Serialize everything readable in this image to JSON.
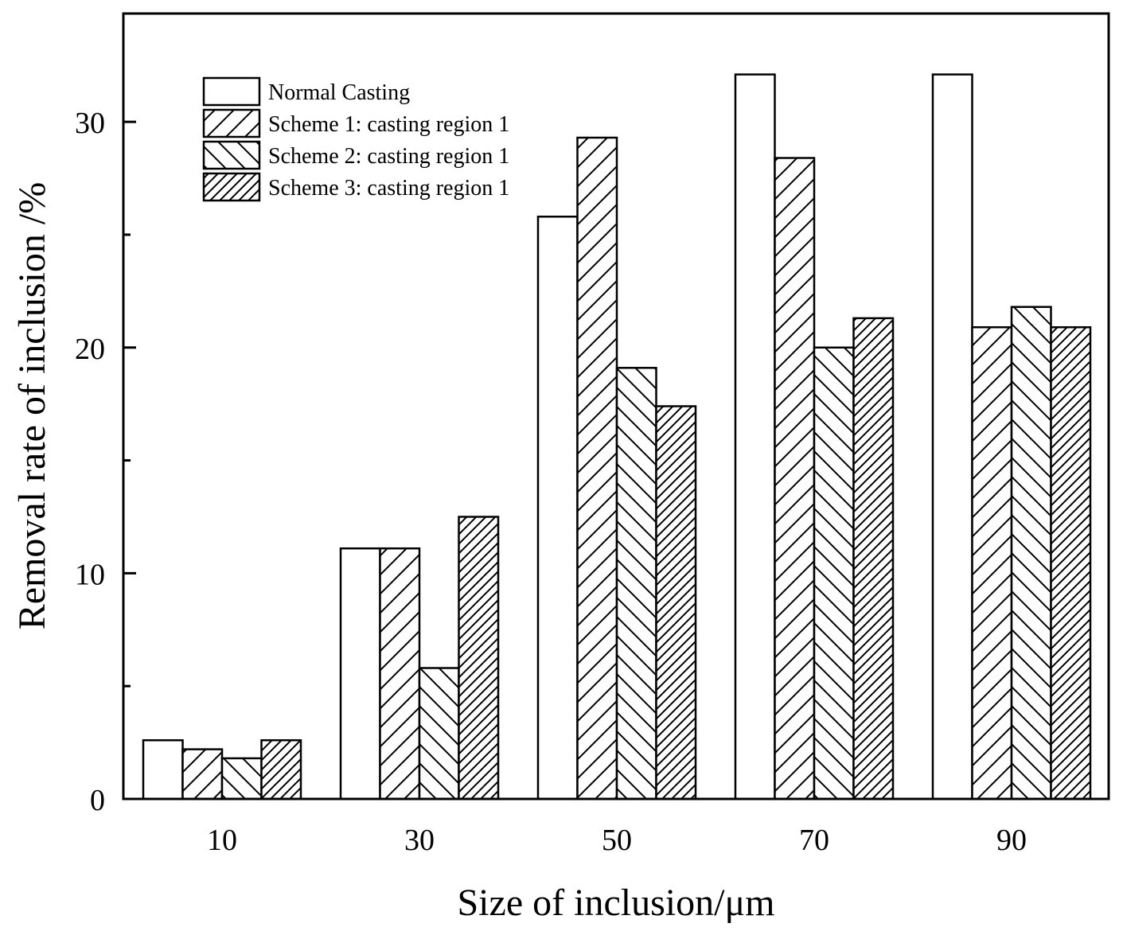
{
  "chart_data": {
    "type": "bar",
    "title": "",
    "xlabel": "Size of inclusion/μm",
    "ylabel": "Removal rate of inclusion /%",
    "categories": [
      "10",
      "30",
      "50",
      "70",
      "90"
    ],
    "ylim": [
      0,
      34.8
    ],
    "yticks": [
      0,
      10,
      20,
      30
    ],
    "grid": false,
    "legend_position": "top-left",
    "series": [
      {
        "name": "Normal Casting",
        "pattern": "none",
        "values": [
          2.6,
          11.1,
          25.8,
          32.1,
          32.1
        ]
      },
      {
        "name": "Scheme 1: casting region 1",
        "pattern": "forward-hatch",
        "values": [
          2.2,
          11.1,
          29.3,
          28.4,
          20.9
        ]
      },
      {
        "name": "Scheme 2: casting region 1",
        "pattern": "back-hatch",
        "values": [
          1.8,
          5.8,
          19.1,
          20.0,
          21.8
        ]
      },
      {
        "name": "Scheme 3: casting region 1",
        "pattern": "dense-forward-hatch",
        "values": [
          2.6,
          12.5,
          17.4,
          21.3,
          20.9
        ]
      }
    ]
  }
}
